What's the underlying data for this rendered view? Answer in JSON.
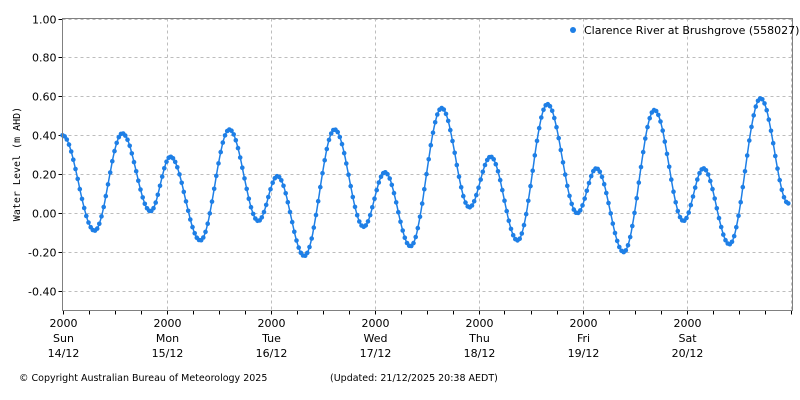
{
  "chart_data": {
    "type": "line",
    "title": "",
    "xlabel": "",
    "ylabel": "Water Level (m AHD)",
    "ylim": [
      -0.5,
      1.0
    ],
    "yticks": [
      "1.00",
      "0.80",
      "0.60",
      "0.40",
      "0.20",
      "0.00",
      "-0.20",
      "-0.40"
    ],
    "ytick_values": [
      1.0,
      0.8,
      0.6,
      0.4,
      0.2,
      0.0,
      -0.2,
      -0.4
    ],
    "xticks": [
      {
        "time": "2000",
        "day": "Sun",
        "date": "14/12"
      },
      {
        "time": "2000",
        "day": "Mon",
        "date": "15/12"
      },
      {
        "time": "2000",
        "day": "Tue",
        "date": "16/12"
      },
      {
        "time": "2000",
        "day": "Wed",
        "date": "17/12"
      },
      {
        "time": "2000",
        "day": "Thu",
        "date": "18/12"
      },
      {
        "time": "2000",
        "day": "Fri",
        "date": "19/12"
      },
      {
        "time": "2000",
        "day": "Sat",
        "date": "20/12"
      }
    ],
    "xrange_hours": [
      0,
      168
    ],
    "x_minor_tick_hours": 6,
    "grid": true,
    "legend_position": "top-right",
    "series": [
      {
        "name": "Clarence River at Brushgrove (558027)",
        "color": "#1e7fe6",
        "marker": "circle",
        "extrema_hours_from_14_12_2000": [
          0,
          7.4,
          13.8,
          20.3,
          24.9,
          31.8,
          38.5,
          45.2,
          49.6,
          55.8,
          62.8,
          69.5,
          74.4,
          80.3,
          87.5,
          93.9,
          98.8,
          105.0,
          111.9,
          118.8,
          123.2,
          129.5,
          136.6,
          143.3,
          147.9,
          153.9,
          161.1,
          167.5
        ],
        "extrema_values": [
          0.4,
          -0.09,
          0.41,
          0.01,
          0.29,
          -0.14,
          0.43,
          -0.04,
          0.19,
          -0.22,
          0.43,
          -0.07,
          0.21,
          -0.17,
          0.54,
          0.03,
          0.29,
          -0.14,
          0.56,
          0.0,
          0.23,
          -0.2,
          0.53,
          -0.04,
          0.23,
          -0.16,
          0.59,
          0.05
        ]
      }
    ]
  },
  "legend": {
    "label": "Clarence River at Brushgrove (558027)"
  },
  "footer": {
    "copyright": "© Copyright Australian Bureau of Meteorology 2025",
    "updated": "(Updated: 21/12/2025 20:38 AEDT)"
  },
  "colors": {
    "series": "#1e7fe6",
    "grid": "#bdbdbd",
    "axis": "#808080"
  }
}
